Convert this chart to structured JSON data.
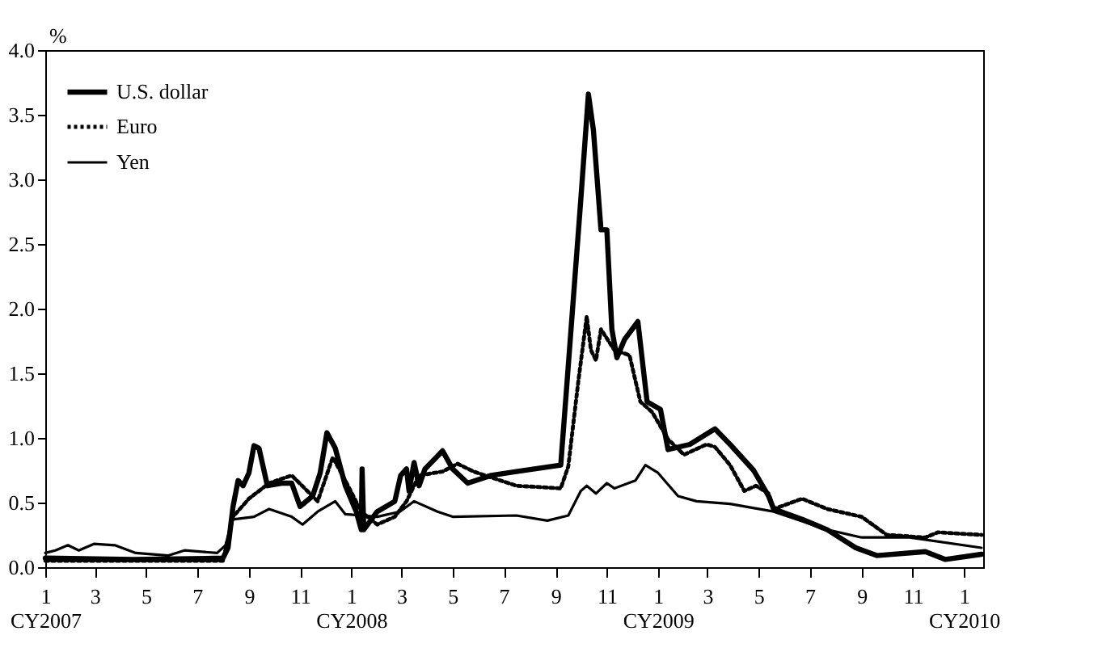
{
  "chart_data": {
    "type": "line",
    "ylabel": "%",
    "legend": "top left",
    "grid": false,
    "xlim": [
      "2007-01-01",
      "2010-01-24"
    ],
    "xticks": [
      {
        "value": "2007-01-01",
        "label": "1\nCY2007"
      },
      {
        "value": "2007-03-01",
        "label": "3"
      },
      {
        "value": "2007-05-01",
        "label": "5"
      },
      {
        "value": "2007-07-01",
        "label": "7"
      },
      {
        "value": "2007-09-01",
        "label": "9"
      },
      {
        "value": "2007-11-01",
        "label": "11"
      },
      {
        "value": "2008-01-01",
        "label": "1\nCY2008"
      },
      {
        "value": "2008-03-01",
        "label": "3"
      },
      {
        "value": "2008-05-01",
        "label": "5"
      },
      {
        "value": "2008-07-01",
        "label": "7"
      },
      {
        "value": "2008-09-01",
        "label": "9"
      },
      {
        "value": "2008-11-01",
        "label": "11"
      },
      {
        "value": "2009-01-01",
        "label": "1\nCY2009"
      },
      {
        "value": "2009-03-01",
        "label": "3"
      },
      {
        "value": "2009-05-01",
        "label": "5"
      },
      {
        "value": "2009-07-01",
        "label": "7"
      },
      {
        "value": "2009-09-01",
        "label": "9"
      },
      {
        "value": "2009-11-01",
        "label": "11"
      },
      {
        "value": "2010-01-01",
        "label": "1\nCY2010"
      }
    ],
    "ylim": [
      0,
      4
    ],
    "yticks": [
      {
        "value": 0,
        "label": "0.0"
      },
      {
        "value": 0.5,
        "label": "0.5"
      },
      {
        "value": 1,
        "label": "1.0"
      },
      {
        "value": 1.5,
        "label": "1.5"
      },
      {
        "value": 2,
        "label": "2.0"
      },
      {
        "value": 2.5,
        "label": "2.5"
      },
      {
        "value": 3,
        "label": "3.0"
      },
      {
        "value": 3.5,
        "label": "3.5"
      },
      {
        "value": 4,
        "label": "4.0"
      }
    ],
    "series": [
      {
        "name": "U.S. dollar",
        "color": "#000000",
        "line_style": "solid",
        "x": [
          "2007-01-01",
          "2007-04-16",
          "2007-08-01",
          "2007-08-07",
          "2007-08-13",
          "2007-08-19",
          "2007-08-25",
          "2007-09-01",
          "2007-09-07",
          "2007-09-13",
          "2007-09-23",
          "2007-10-10",
          "2007-10-22",
          "2007-11-01",
          "2007-11-16",
          "2007-11-25",
          "2007-12-03",
          "2007-12-13",
          "2007-12-25",
          "2008-01-07",
          "2008-01-13",
          "2008-01-14",
          "2008-01-16",
          "2008-02-01",
          "2008-02-22",
          "2008-02-29",
          "2008-03-07",
          "2008-03-10",
          "2008-03-16",
          "2008-03-22",
          "2008-03-29",
          "2008-04-19",
          "2008-05-01",
          "2008-05-19",
          "2008-06-16",
          "2008-07-16",
          "2008-09-07",
          "2008-09-16",
          "2008-10-01",
          "2008-10-10",
          "2008-10-16",
          "2008-10-25",
          "2008-11-01",
          "2008-11-07",
          "2008-11-13",
          "2008-11-22",
          "2008-12-08",
          "2008-12-19",
          "2009-01-04",
          "2009-01-13",
          "2009-02-08",
          "2009-03-10",
          "2009-03-28",
          "2009-04-25",
          "2009-05-13",
          "2009-05-19",
          "2009-06-22",
          "2009-07-22",
          "2009-08-25",
          "2009-09-19",
          "2009-11-16",
          "2009-12-10",
          "2010-01-22"
        ],
        "values": [
          0.07,
          0.06,
          0.07,
          0.15,
          0.47,
          0.67,
          0.63,
          0.73,
          0.94,
          0.92,
          0.63,
          0.65,
          0.65,
          0.47,
          0.55,
          0.73,
          1.04,
          0.92,
          0.63,
          0.43,
          0.29,
          0.76,
          0.29,
          0.43,
          0.51,
          0.71,
          0.76,
          0.59,
          0.81,
          0.63,
          0.76,
          0.9,
          0.76,
          0.65,
          0.71,
          0.74,
          0.79,
          1.56,
          2.85,
          3.66,
          3.38,
          2.61,
          2.61,
          1.84,
          1.62,
          1.76,
          1.9,
          1.28,
          1.22,
          0.91,
          0.95,
          1.07,
          0.95,
          0.75,
          0.55,
          0.45,
          0.37,
          0.29,
          0.15,
          0.09,
          0.12,
          0.06,
          0.1
        ]
      },
      {
        "name": "Euro",
        "color": "#000000",
        "line_style": "dotted",
        "x": [
          "2007-01-01",
          "2007-08-01",
          "2007-08-13",
          "2007-09-01",
          "2007-09-25",
          "2007-10-22",
          "2007-11-22",
          "2007-12-10",
          "2007-12-25",
          "2008-01-13",
          "2008-02-01",
          "2008-02-22",
          "2008-03-07",
          "2008-03-22",
          "2008-04-19",
          "2008-05-07",
          "2008-05-26",
          "2008-07-16",
          "2008-09-07",
          "2008-09-16",
          "2008-09-28",
          "2008-10-08",
          "2008-10-13",
          "2008-10-19",
          "2008-10-25",
          "2008-11-10",
          "2008-11-28",
          "2008-12-11",
          "2008-12-25",
          "2009-01-13",
          "2009-02-01",
          "2009-02-28",
          "2009-03-10",
          "2009-03-28",
          "2009-04-14",
          "2009-04-28",
          "2009-05-13",
          "2009-05-19",
          "2009-06-22",
          "2009-07-22",
          "2009-09-01",
          "2009-10-01",
          "2009-11-16",
          "2009-12-01",
          "2010-01-22"
        ],
        "values": [
          0.05,
          0.05,
          0.39,
          0.53,
          0.65,
          0.71,
          0.51,
          0.85,
          0.67,
          0.43,
          0.33,
          0.39,
          0.51,
          0.71,
          0.74,
          0.8,
          0.74,
          0.63,
          0.61,
          0.78,
          1.44,
          1.94,
          1.68,
          1.6,
          1.84,
          1.68,
          1.64,
          1.28,
          1.2,
          0.99,
          0.87,
          0.95,
          0.93,
          0.79,
          0.59,
          0.63,
          0.57,
          0.45,
          0.53,
          0.45,
          0.39,
          0.25,
          0.23,
          0.27,
          0.25
        ]
      },
      {
        "name": "Yen",
        "color": "#000000",
        "line_style": "solid",
        "x": [
          "2007-01-01",
          "2007-01-13",
          "2007-01-28",
          "2007-02-10",
          "2007-02-28",
          "2007-03-25",
          "2007-04-19",
          "2007-05-28",
          "2007-06-16",
          "2007-07-25",
          "2007-08-04",
          "2007-08-13",
          "2007-09-07",
          "2007-09-25",
          "2007-10-22",
          "2007-11-04",
          "2007-11-22",
          "2007-12-13",
          "2007-12-25",
          "2008-02-01",
          "2008-02-28",
          "2008-03-16",
          "2008-04-13",
          "2008-05-01",
          "2008-07-16",
          "2008-08-22",
          "2008-09-16",
          "2008-10-01",
          "2008-10-08",
          "2008-10-19",
          "2008-11-01",
          "2008-11-10",
          "2008-12-05",
          "2008-12-17",
          "2009-01-01",
          "2009-01-25",
          "2009-02-16",
          "2009-03-28",
          "2009-05-19",
          "2009-07-22",
          "2009-09-01",
          "2009-10-28",
          "2010-01-22"
        ],
        "values": [
          0.11,
          0.13,
          0.17,
          0.13,
          0.18,
          0.17,
          0.11,
          0.09,
          0.13,
          0.11,
          0.17,
          0.37,
          0.39,
          0.45,
          0.39,
          0.33,
          0.43,
          0.51,
          0.41,
          0.39,
          0.43,
          0.51,
          0.43,
          0.39,
          0.4,
          0.36,
          0.4,
          0.59,
          0.63,
          0.57,
          0.65,
          0.61,
          0.67,
          0.79,
          0.73,
          0.55,
          0.51,
          0.49,
          0.43,
          0.29,
          0.23,
          0.23,
          0.15
        ]
      }
    ]
  }
}
